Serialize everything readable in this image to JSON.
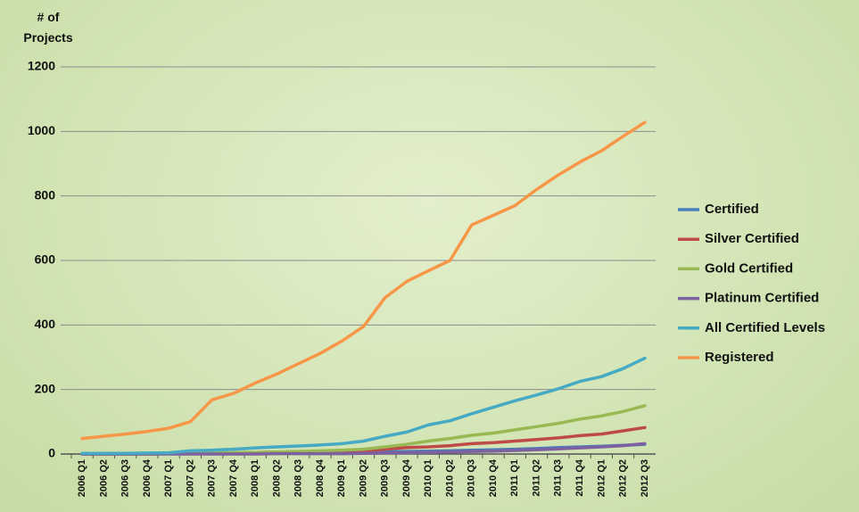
{
  "chart_data": {
    "type": "line",
    "y_label": "# of Projects",
    "categories": [
      "2006 Q1",
      "2006 Q2",
      "2006 Q3",
      "2006 Q4",
      "2007 Q1",
      "2007 Q2",
      "2007 Q3",
      "2007 Q4",
      "2008 Q1",
      "2008 Q2",
      "2008 Q3",
      "2008 Q4",
      "2009 Q1",
      "2009 Q2",
      "2009 Q3",
      "2009 Q4",
      "2010 Q1",
      "2010 Q2",
      "2010 Q3",
      "2010 Q4",
      "2011 Q1",
      "2011 Q2",
      "2011 Q3",
      "2011 Q4",
      "2012 Q1",
      "2012 Q2",
      "2012 Q3"
    ],
    "series": [
      {
        "name": "Certified",
        "color": "#4a7ebb",
        "values": [
          0,
          0,
          0,
          1,
          1,
          2,
          2,
          3,
          3,
          4,
          4,
          5,
          5,
          6,
          7,
          8,
          9,
          10,
          12,
          13,
          15,
          17,
          20,
          22,
          24,
          27,
          30
        ]
      },
      {
        "name": "Silver Certified",
        "color": "#be4b48",
        "values": [
          0,
          0,
          0,
          0,
          1,
          2,
          3,
          4,
          5,
          6,
          6,
          7,
          8,
          10,
          15,
          20,
          22,
          26,
          32,
          35,
          40,
          45,
          50,
          57,
          62,
          72,
          82
        ]
      },
      {
        "name": "Gold Certified",
        "color": "#98b954",
        "values": [
          0,
          0,
          0,
          0,
          1,
          2,
          3,
          4,
          5,
          6,
          8,
          10,
          12,
          15,
          22,
          30,
          40,
          48,
          58,
          65,
          75,
          85,
          95,
          108,
          118,
          132,
          150
        ]
      },
      {
        "name": "Platinum Certified",
        "color": "#7d60a0",
        "values": [
          0,
          0,
          0,
          0,
          0,
          0,
          0,
          0,
          0,
          1,
          1,
          1,
          1,
          2,
          3,
          4,
          5,
          6,
          8,
          9,
          11,
          13,
          16,
          19,
          22,
          26,
          32
        ]
      },
      {
        "name": "All Certified Levels",
        "color": "#46aac5",
        "values": [
          2,
          2,
          2,
          3,
          4,
          10,
          12,
          15,
          19,
          22,
          25,
          28,
          32,
          40,
          55,
          68,
          90,
          103,
          125,
          145,
          165,
          183,
          202,
          225,
          240,
          265,
          297
        ]
      },
      {
        "name": "Registered",
        "color": "#f79646",
        "values": [
          48,
          55,
          62,
          70,
          80,
          100,
          168,
          188,
          220,
          248,
          280,
          312,
          350,
          395,
          485,
          535,
          568,
          600,
          710,
          740,
          770,
          820,
          865,
          905,
          940,
          985,
          1028
        ]
      }
    ],
    "ylim": [
      0,
      1200
    ],
    "yticks": [
      0,
      200,
      400,
      600,
      800,
      1000,
      1200
    ],
    "grid": true,
    "legend": "right"
  }
}
